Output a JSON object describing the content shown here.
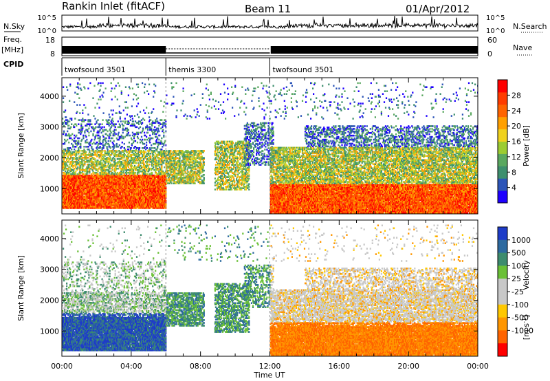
{
  "header": {
    "title_left": "Rankin Inlet (fitACF)",
    "title_mid": "Beam 11",
    "title_right": "01/Apr/2012"
  },
  "top_panel": {
    "nsky_label": "N.Sky",
    "nsearch_label": "N.Search",
    "noise_ticks": [
      "10^5",
      "10^0"
    ],
    "freq_label": "Freq.",
    "freq_unit": "[MHz]",
    "freq_ticks": [
      "18",
      "8"
    ],
    "nave_label": "Nave",
    "nave_ticks": [
      "60",
      "0"
    ],
    "cpid_label": "CPID",
    "cpid_segments": [
      {
        "name": "twofsound 3501",
        "start": 0,
        "end": 6
      },
      {
        "name": "themis 3300",
        "start": 6,
        "end": 12
      },
      {
        "name": "twofsound 3501",
        "start": 12,
        "end": 24
      }
    ]
  },
  "chart_data": [
    {
      "type": "heatmap",
      "panel": "power",
      "ylabel": "Slant Range [km]",
      "ylim": [
        180,
        4600
      ],
      "yticks": [
        "1000",
        "2000",
        "3000",
        "4000"
      ],
      "xlim": [
        0,
        24
      ],
      "colorbar_label": "Power [dB]",
      "colorbar_ticks": [
        "4",
        "8",
        "12",
        "16",
        "20",
        "24",
        "28"
      ],
      "colorbar_colors": [
        "#1e00ff",
        "#2c55b8",
        "#3e8f6e",
        "#5aa860",
        "#9ccc32",
        "#f0d21e",
        "#ffa000",
        "#ff6400",
        "#ff3c00",
        "#ff0000"
      ],
      "dashed_lines_ut": [
        6,
        12
      ]
    },
    {
      "type": "heatmap",
      "panel": "velocity",
      "ylabel": "Slant Range [km]",
      "ylim": [
        180,
        4600
      ],
      "yticks": [
        "1000",
        "2000",
        "3000",
        "4000"
      ],
      "xlim": [
        0,
        24
      ],
      "xlabel": "Time UT",
      "xticks": [
        "00:00",
        "04:00",
        "08:00",
        "12:00",
        "16:00",
        "20:00",
        "00:00"
      ],
      "colorbar_label": "Velocity",
      "colorbar_unit": "[m s",
      "colorbar_unit_sup": "-1",
      "colorbar_unit_close": "]",
      "colorbar_ticks": [
        "1000",
        "500",
        "100",
        "25",
        "-25",
        "-100",
        "-500",
        "-1000"
      ],
      "colorbar_colors": [
        "#1e3cc8",
        "#2d6aa0",
        "#3d8c6e",
        "#6ac036",
        "#c8c8c8",
        "#c8c8c8",
        "#ffc800",
        "#ff9600",
        "#ff6400",
        "#ff0000"
      ],
      "dashed_lines_ut": [
        6,
        12
      ]
    }
  ]
}
